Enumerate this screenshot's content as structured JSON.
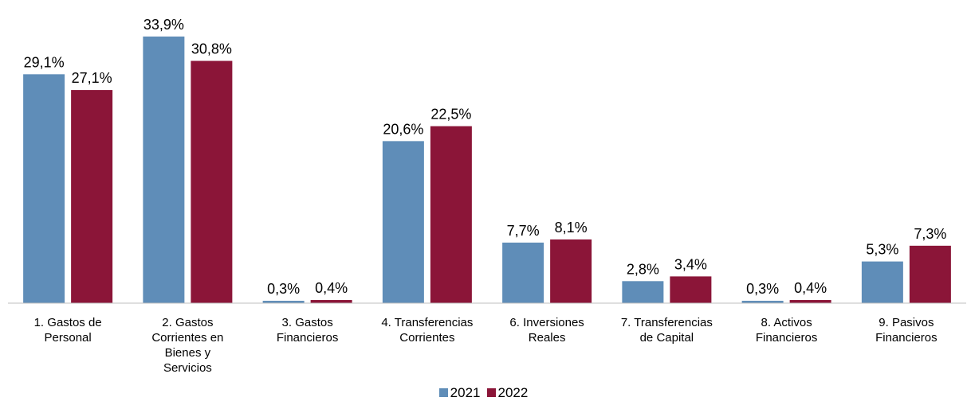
{
  "chart_data": {
    "type": "bar",
    "categories": [
      "1. Gastos de\nPersonal",
      "2. Gastos\nCorrientes en\nBienes y\nServicios",
      "3. Gastos\nFinancieros",
      "4. Transferencias\nCorrientes",
      "6. Inversiones\nReales",
      "7. Transferencias\nde Capital",
      "8. Activos\nFinancieros",
      "9. Pasivos\nFinancieros"
    ],
    "series": [
      {
        "name": "2021",
        "color": "#5f8db8",
        "values": [
          29.1,
          33.9,
          0.3,
          20.6,
          7.7,
          2.8,
          0.3,
          5.3
        ],
        "value_labels": [
          "29,1%",
          "33,9%",
          "0,3%",
          "20,6%",
          "7,7%",
          "2,8%",
          "0,3%",
          "5,3%"
        ]
      },
      {
        "name": "2022",
        "color": "#8b1538",
        "values": [
          27.1,
          30.8,
          0.4,
          22.5,
          8.1,
          3.4,
          0.4,
          7.3
        ],
        "value_labels": [
          "27,1%",
          "30,8%",
          "0,4%",
          "22,5%",
          "8,1%",
          "3,4%",
          "0,4%",
          "7,3%"
        ]
      }
    ],
    "ylim": [
      0,
      35
    ],
    "legend": "bottom"
  }
}
